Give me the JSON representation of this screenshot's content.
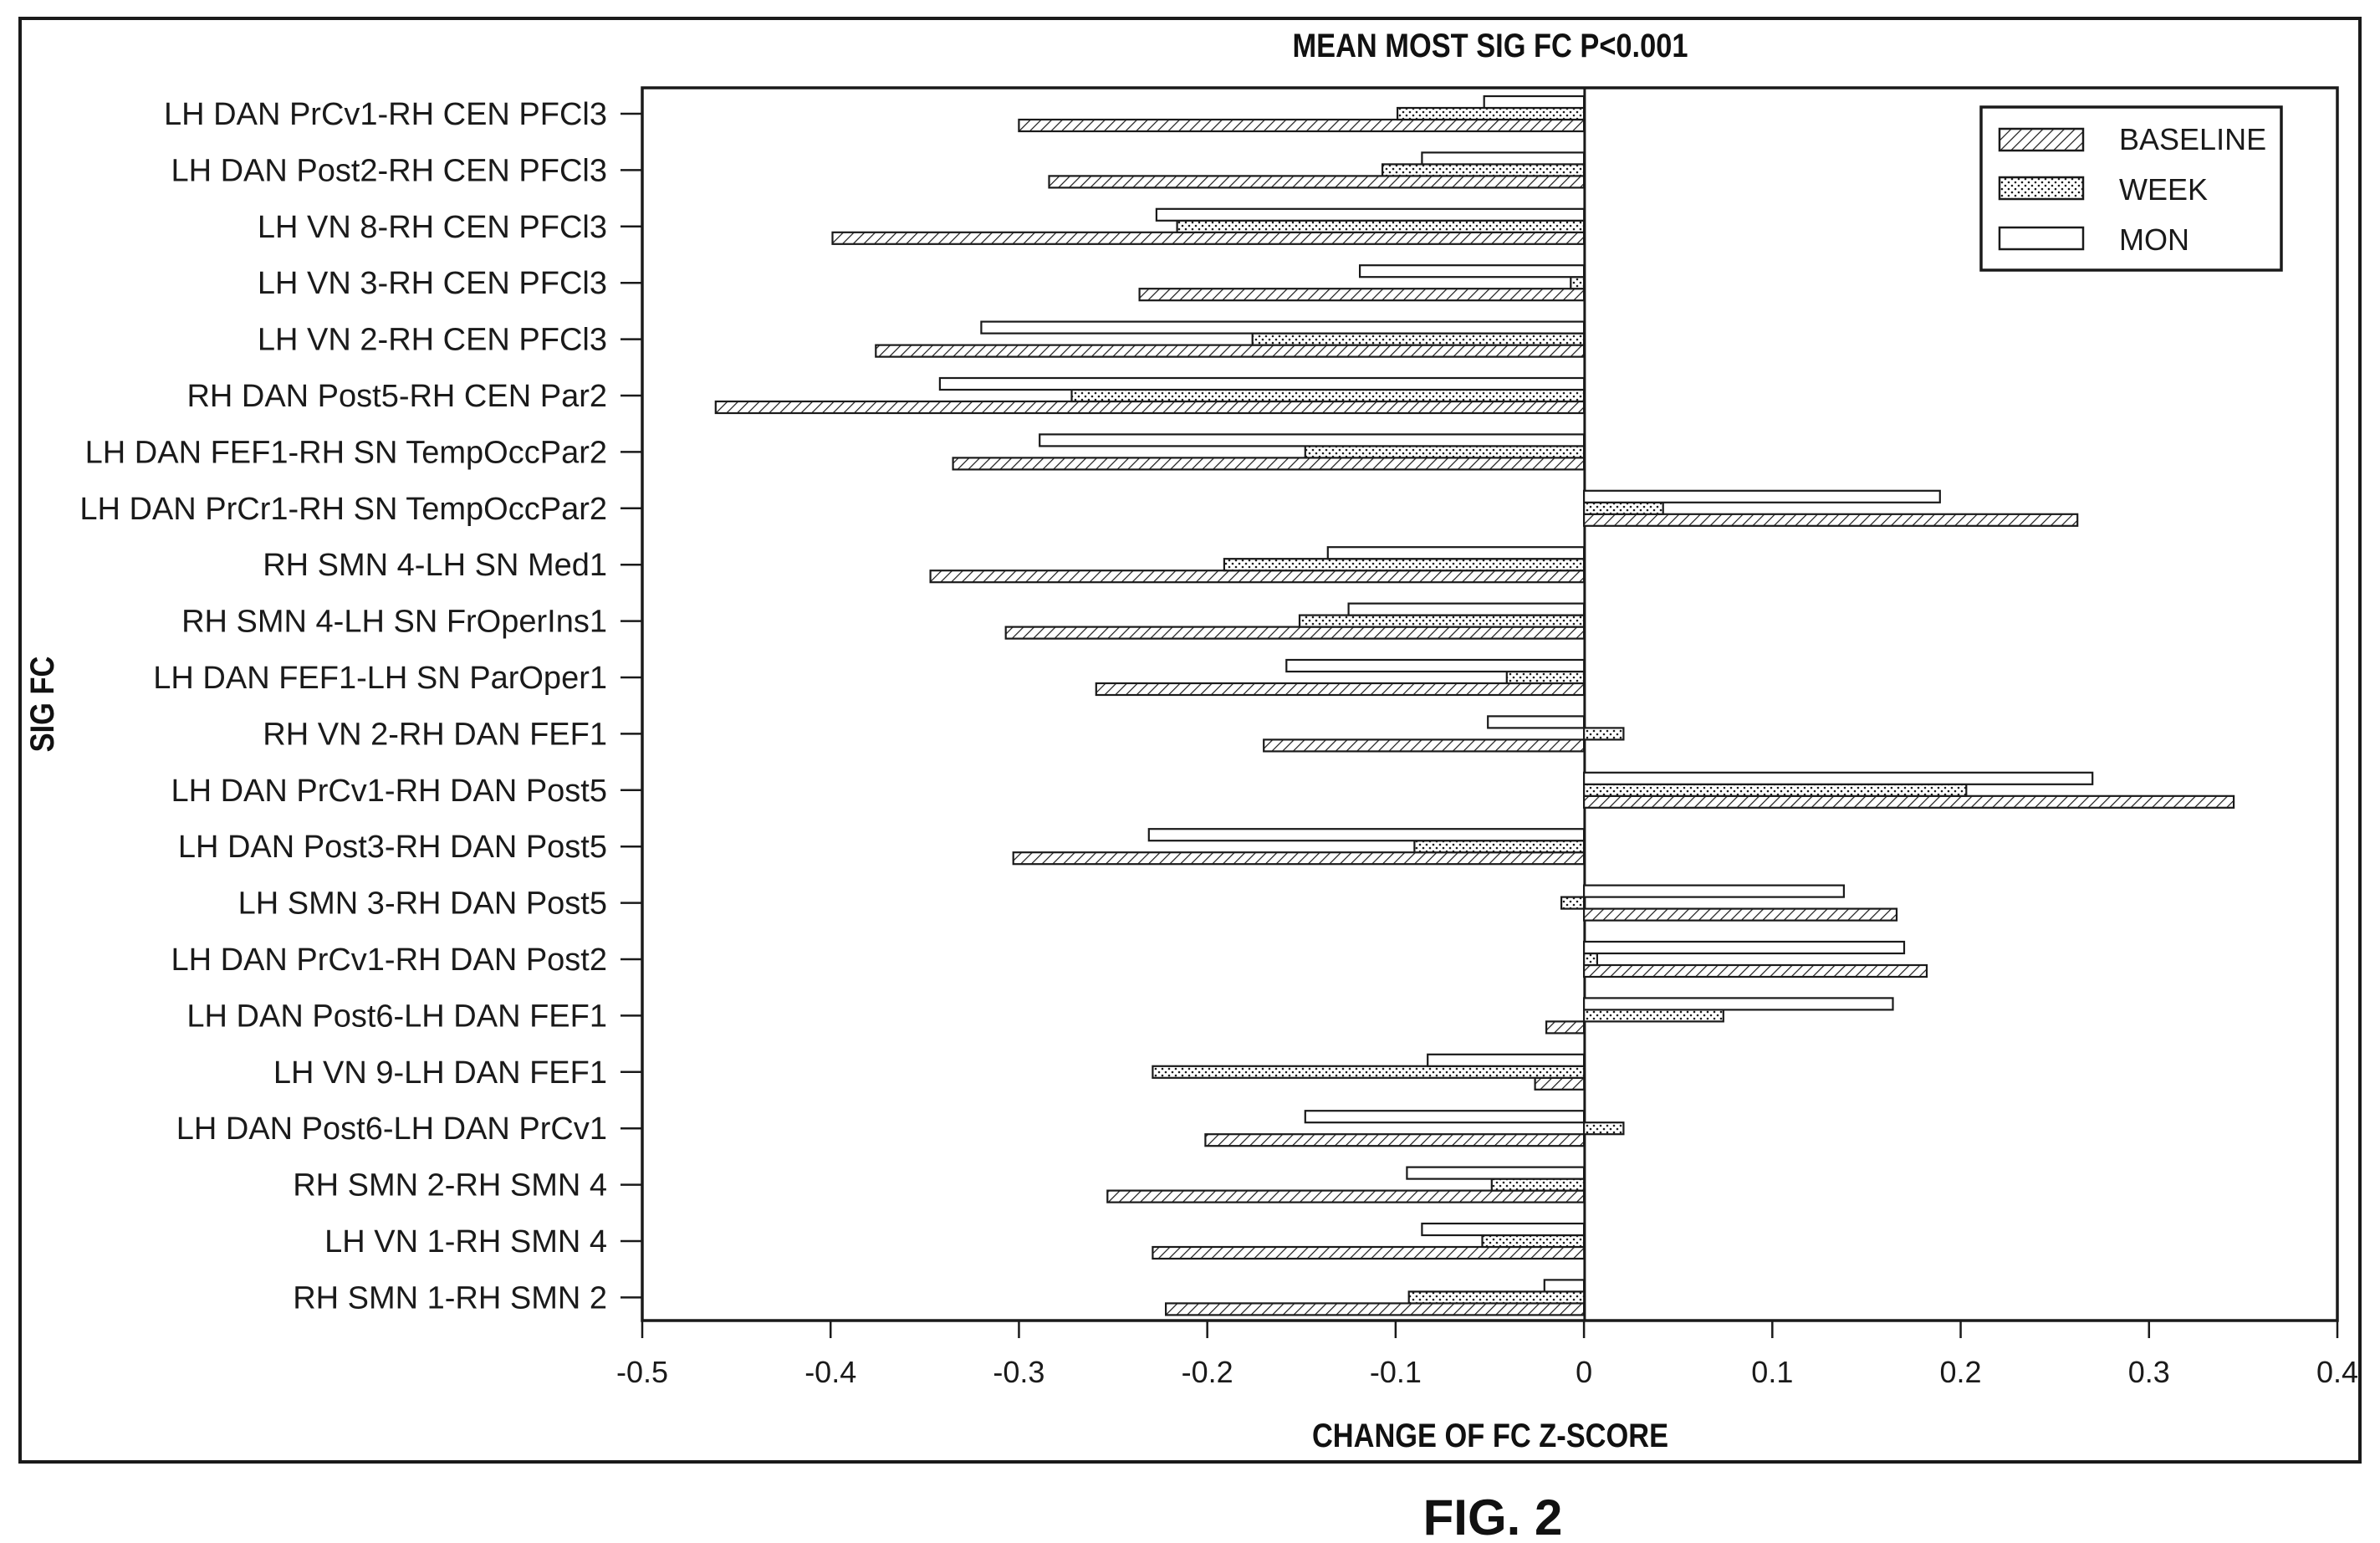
{
  "figure_label": "FIG. 2",
  "chart_data": {
    "type": "bar",
    "orientation": "horizontal",
    "title": "MEAN MOST SIG FC P<0.001",
    "xlabel": "CHANGE OF FC Z-SCORE",
    "ylabel": "SIG FC",
    "xlim": [
      -0.5,
      0.4
    ],
    "xticks": [
      -0.5,
      -0.4,
      -0.3,
      -0.2,
      -0.1,
      0,
      0.1,
      0.2,
      0.3,
      0.4
    ],
    "xtick_labels": [
      "-0.5",
      "-0.4",
      "-0.3",
      "-0.2",
      "-0.1",
      "0",
      "0.1",
      "0.2",
      "0.3",
      "0.4"
    ],
    "grid": false,
    "legend_position": "top-right",
    "categories": [
      "LH DAN PrCv1-RH CEN PFCl3",
      "LH DAN Post2-RH CEN PFCl3",
      "LH VN 8-RH CEN PFCl3",
      "LH VN 3-RH CEN PFCl3",
      "LH VN 2-RH CEN PFCl3",
      "RH DAN Post5-RH CEN Par2",
      "LH DAN FEF1-RH SN TempOccPar2",
      "LH DAN PrCr1-RH SN TempOccPar2",
      "RH SMN 4-LH SN Med1",
      "RH SMN 4-LH SN FrOperIns1",
      "LH DAN FEF1-LH SN ParOper1",
      "RH VN 2-RH DAN FEF1",
      "LH DAN PrCv1-RH DAN Post5",
      "LH DAN Post3-RH DAN Post5",
      "LH SMN 3-RH DAN Post5",
      "LH DAN PrCv1-RH DAN Post2",
      "LH DAN Post6-LH DAN FEF1",
      "LH VN 9-LH DAN FEF1",
      "LH DAN Post6-LH DAN PrCv1",
      "RH SMN 2-RH SMN 4",
      "LH VN 1-RH SMN 4",
      "RH SMN 1-RH SMN 2"
    ],
    "series": [
      {
        "name": "BASELINE",
        "pattern": "diagonal-hatch",
        "values": [
          -0.3,
          -0.284,
          -0.399,
          -0.236,
          -0.376,
          -0.461,
          -0.335,
          0.262,
          -0.347,
          -0.307,
          -0.259,
          -0.17,
          0.345,
          -0.303,
          0.166,
          0.182,
          -0.02,
          -0.026,
          -0.201,
          -0.253,
          -0.229,
          -0.222
        ]
      },
      {
        "name": "WEEK",
        "pattern": "dots",
        "values": [
          -0.099,
          -0.107,
          -0.216,
          -0.007,
          -0.176,
          -0.272,
          -0.148,
          0.042,
          -0.191,
          -0.151,
          -0.041,
          0.021,
          0.203,
          -0.09,
          -0.012,
          0.007,
          0.074,
          -0.229,
          0.021,
          -0.049,
          -0.054,
          -0.093
        ]
      },
      {
        "name": "MON",
        "pattern": "none",
        "values": [
          -0.053,
          -0.086,
          -0.227,
          -0.119,
          -0.32,
          -0.342,
          -0.289,
          0.189,
          -0.136,
          -0.125,
          -0.158,
          -0.051,
          0.27,
          -0.231,
          0.138,
          0.17,
          0.164,
          -0.083,
          -0.148,
          -0.094,
          -0.086,
          -0.021
        ]
      }
    ],
    "colors": {
      "stroke": "#1a1a1a",
      "fill": "#ffffff",
      "background": "#ffffff"
    }
  }
}
